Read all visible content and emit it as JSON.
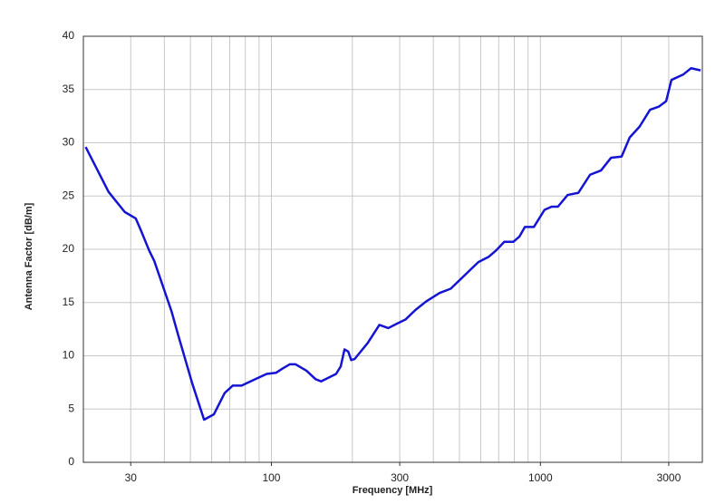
{
  "chart_data": {
    "type": "line",
    "x_label": "Frequency [MHz]",
    "y_label": "Antenna Factor [dB/m]",
    "xscale": "log",
    "xlim": [
      20,
      4000
    ],
    "ylim": [
      0,
      40
    ],
    "xticks": [
      30,
      100,
      300,
      1000,
      3000
    ],
    "xgrid": [
      30,
      40,
      50,
      60,
      70,
      80,
      90,
      100,
      200,
      300,
      400,
      500,
      600,
      700,
      800,
      900,
      1000,
      2000,
      3000
    ],
    "yticks": [
      0,
      5,
      10,
      15,
      20,
      25,
      30,
      35,
      40
    ],
    "grid": true,
    "series": [
      {
        "color": "#1414d2",
        "x": [
          20.4,
          24.8,
          28.5,
          31.3,
          32.7,
          35.1,
          36.7,
          42.5,
          45.2,
          50.8,
          56.2,
          61.1,
          67,
          71.8,
          77.5,
          87,
          96,
          104,
          110,
          117,
          123,
          135,
          146,
          153,
          174,
          181,
          187,
          193,
          198,
          204,
          228,
          252,
          272,
          292,
          315,
          343,
          376,
          422,
          464,
          520,
          588,
          643,
          685,
          734,
          793,
          836,
          876,
          946,
          1036,
          1101,
          1162,
          1263,
          1384,
          1530,
          1680,
          1832,
          2004,
          2148,
          2335,
          2557,
          2760,
          2934,
          3070,
          3393,
          3634,
          3940
        ],
        "values": [
          29.6,
          25.4,
          23.5,
          22.9,
          21.8,
          19.9,
          18.9,
          14.2,
          11.8,
          7.4,
          4.0,
          4.5,
          6.5,
          7.2,
          7.2,
          7.8,
          8.3,
          8.4,
          8.8,
          9.2,
          9.2,
          8.6,
          7.8,
          7.6,
          8.3,
          9.0,
          10.6,
          10.4,
          9.6,
          9.7,
          11.2,
          12.9,
          12.6,
          13.0,
          13.4,
          14.3,
          15.1,
          15.9,
          16.3,
          17.5,
          18.8,
          19.3,
          19.9,
          20.7,
          20.7,
          21.2,
          22.1,
          22.1,
          23.7,
          24.0,
          24.0,
          25.1,
          25.3,
          27.0,
          27.4,
          28.6,
          28.7,
          30.5,
          31.5,
          33.1,
          33.4,
          33.9,
          35.9,
          36.4,
          37.0,
          36.8
        ]
      }
    ]
  }
}
